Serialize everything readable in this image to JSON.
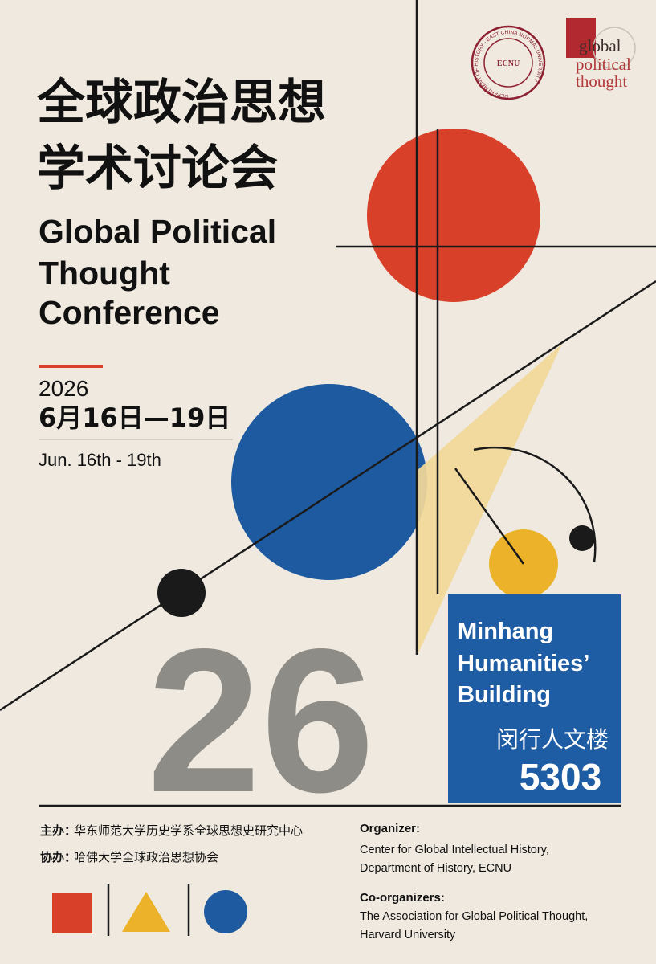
{
  "logos": {
    "seal_center": "ECNU",
    "seal_ring": "DEPARTMENT OF HISTORY · EAST CHINA NORMAL UNIVERSITY",
    "gpt": [
      "global",
      "political",
      "thought"
    ]
  },
  "header": {
    "title_zh": [
      "全球政治思想",
      "学术讨论会"
    ],
    "title_en": [
      "Global Political",
      "Thought",
      "Conference"
    ]
  },
  "date": {
    "year": "2026",
    "zh": "6月16日—19日",
    "en": "Jun. 16th - 19th",
    "big": "26"
  },
  "venue": {
    "en": [
      "Minhang",
      "Humanities’",
      "Building"
    ],
    "zh": "闵行人文楼",
    "room": "5303"
  },
  "organizers_zh": [
    {
      "label": "主办：",
      "text": "华东师范大学历史学系全球思想史研究中心"
    },
    {
      "label": "协办：",
      "text": "哈佛大学全球政治思想协会"
    }
  ],
  "organizers_en": [
    {
      "label": "Organizer:",
      "lines": [
        "Center for Global Intellectual History,",
        "Department of History, ECNU"
      ]
    },
    {
      "label": "Co-organizers:",
      "lines": [
        "The Association for Global Political Thought,",
        "Harvard University"
      ]
    }
  ]
}
